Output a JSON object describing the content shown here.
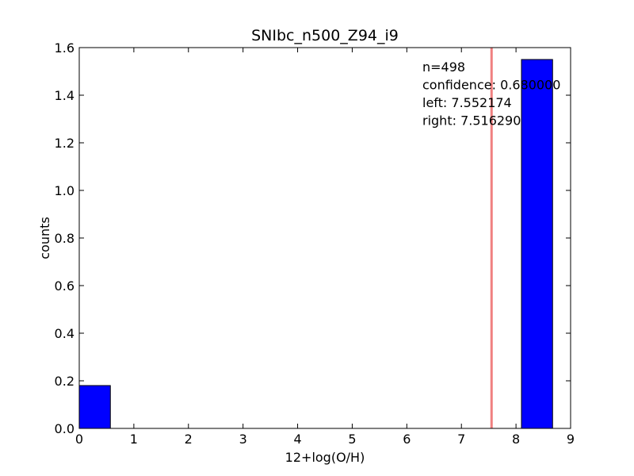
{
  "chart_data": {
    "type": "bar",
    "title": "SNIbc_n500_Z94_i9",
    "xlabel": "12+log(O/H)",
    "ylabel": "counts",
    "xlim": [
      0,
      9
    ],
    "ylim": [
      0,
      1.6
    ],
    "xticks": [
      "0",
      "1",
      "2",
      "3",
      "4",
      "5",
      "6",
      "7",
      "8",
      "9"
    ],
    "yticks": [
      "0.0",
      "0.2",
      "0.4",
      "0.6",
      "0.8",
      "1.0",
      "1.2",
      "1.4",
      "1.6"
    ],
    "grid": false,
    "bins": [
      {
        "x0": 0.0,
        "x1": 0.57,
        "value": 0.18
      },
      {
        "x0": 8.1,
        "x1": 8.67,
        "value": 1.55
      }
    ],
    "bar_color": "#0000ff",
    "vertical_line": {
      "x": 7.552174,
      "color": "#f08080"
    },
    "annotations": [
      "n=498",
      "confidence: 0.680000",
      "left: 7.552174",
      "right: 7.516290"
    ]
  }
}
